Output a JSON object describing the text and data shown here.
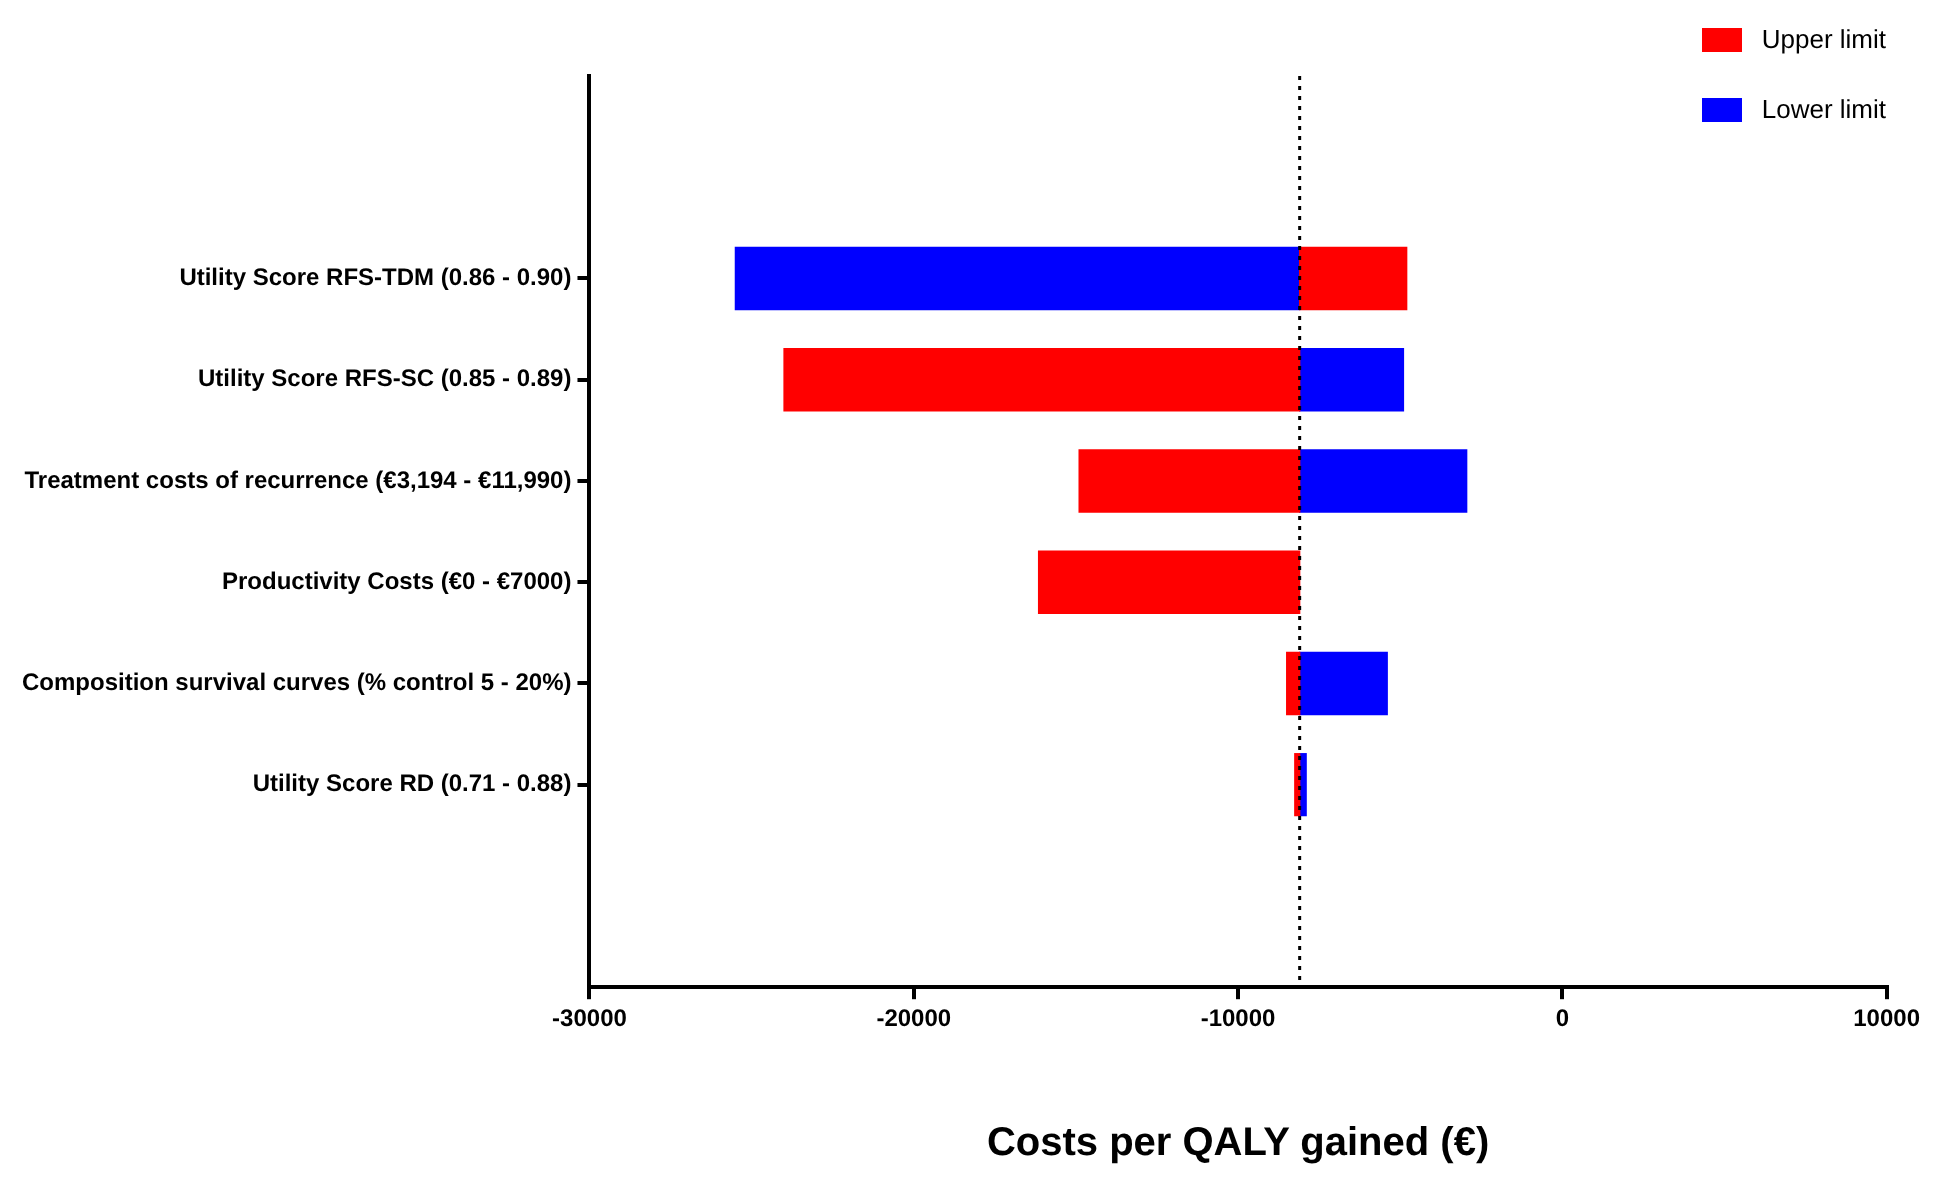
{
  "chart_data": {
    "type": "bar",
    "orientation": "horizontal",
    "xlabel": "Costs per QALY gained (€)",
    "categories": [
      "Utility Score RFS-TDM (0.86 - 0.90)",
      "Utility Score RFS-SC (0.85 - 0.89)",
      "Treatment costs of recurrence (€3,194 - €11,990)",
      "Productivity Costs (€0 - €7000)",
      "Composition survival curves (% control 5 - 20%)",
      "Utility Score RD (0.71 - 0.88)"
    ],
    "series": [
      {
        "name": "Upper limit",
        "color": "#ff0000",
        "base": [
          -8100,
          -8100,
          -8100,
          -8100,
          -8100,
          -8100
        ],
        "values": [
          3300,
          -15900,
          -6800,
          -8050,
          -400,
          -150
        ]
      },
      {
        "name": "Lower limit",
        "color": "#0000ff",
        "base": [
          -8100,
          -8100,
          -8100,
          null,
          -8100,
          -8100
        ],
        "values": [
          -17400,
          3200,
          5150,
          null,
          2700,
          200
        ]
      }
    ],
    "xlim": [
      -30000,
      10000
    ],
    "xticks": [
      -30000,
      -20000,
      -10000,
      0,
      10000
    ],
    "ref_lines": [
      {
        "axis": "x",
        "value": -8100,
        "line_style": "dotted",
        "color": "#000000"
      }
    ],
    "legend": "top right",
    "grid": false
  }
}
